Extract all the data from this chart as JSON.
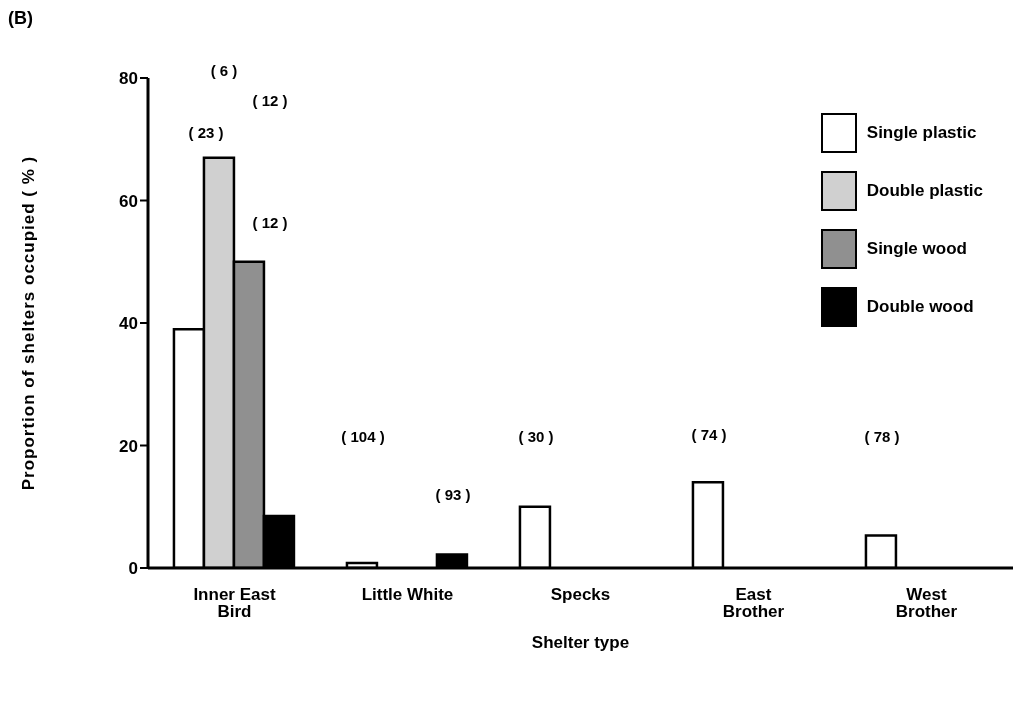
{
  "chart_data": {
    "type": "bar",
    "title": "(B)",
    "xlabel": "Shelter type",
    "ylabel": "Proportion of shelters occupied ( % )",
    "categories": [
      "Inner East Bird",
      "Little White",
      "Specks",
      "East Brother",
      "West Brother"
    ],
    "series": [
      {
        "name": "Single plastic",
        "color": "#ffffff",
        "values": [
          39,
          0.8,
          10,
          14,
          5.3
        ]
      },
      {
        "name": "Double plastic",
        "color": "#d0d0d0",
        "values": [
          67,
          null,
          null,
          null,
          null
        ]
      },
      {
        "name": "Single wood",
        "color": "#909090",
        "values": [
          50,
          null,
          null,
          null,
          null
        ]
      },
      {
        "name": "Double wood",
        "color": "#000000",
        "values": [
          8.5,
          2.2,
          null,
          null,
          null
        ]
      }
    ],
    "ylim": [
      0,
      80
    ],
    "yticks": [
      0,
      20,
      40,
      60,
      80
    ],
    "grid": false,
    "legend": "top right",
    "annotations": [
      "( 6 )",
      "( 12 )",
      "( 23 )",
      "( 12 )",
      "( 104 )",
      "( 93 )",
      "( 30 )",
      "( 74 )",
      "( 78 )"
    ]
  }
}
